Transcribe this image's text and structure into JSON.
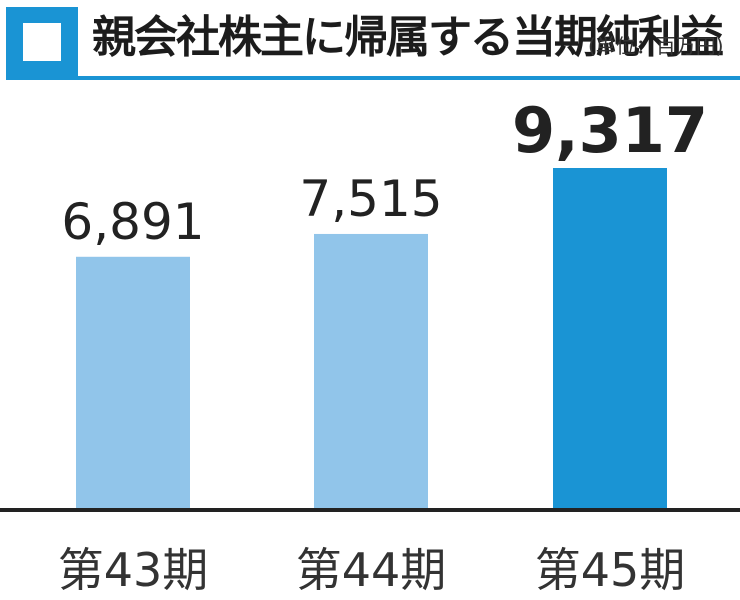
{
  "title": "親会社株主に帰属する当期純利益",
  "unit": "(単位：百万円)",
  "colors": {
    "accent": "#1a94d4",
    "bar_past": "#91c5ea",
    "bar_current": "#1a94d4",
    "axis": "#222222"
  },
  "chart_data": {
    "type": "bar",
    "title": "親会社株主に帰属する当期純利益",
    "categories": [
      "第43期",
      "第44期",
      "第45期"
    ],
    "values": [
      6891,
      7515,
      9317
    ],
    "value_labels": [
      "6,891",
      "7,515",
      "9,317"
    ],
    "highlight_index": 2,
    "xlabel": "",
    "ylabel": "",
    "ylim": [
      0,
      10000
    ],
    "grid": false,
    "legend": "none"
  }
}
